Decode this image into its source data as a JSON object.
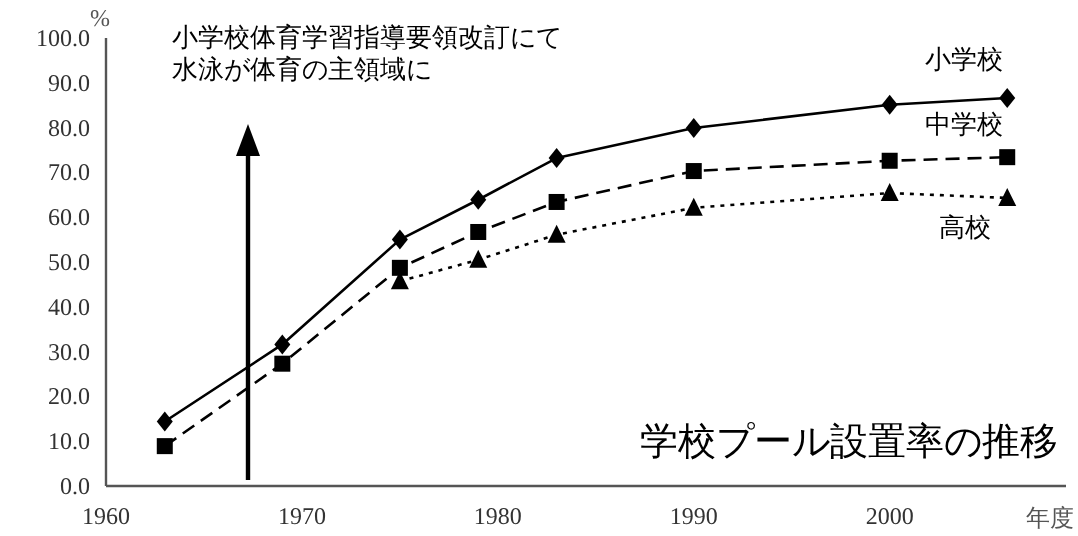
{
  "chart_data": {
    "type": "line",
    "title": "学校プール設置率の推移",
    "ylabel": "%",
    "xlabel": "年度",
    "x": [
      1963,
      1969,
      1975,
      1979,
      1983,
      1990,
      2000,
      2006
    ],
    "series": [
      {
        "name": "小学校",
        "color": "#000000",
        "marker": "diamond",
        "line_style": "solid",
        "values": [
          14.4,
          31.6,
          55.0,
          63.9,
          73.2,
          79.9,
          85.1,
          86.6
        ]
      },
      {
        "name": "中学校",
        "color": "#000000",
        "marker": "square",
        "line_style": "dashed",
        "values": [
          8.9,
          27.3,
          48.7,
          56.7,
          63.4,
          70.3,
          72.6,
          73.4
        ]
      },
      {
        "name": "高校",
        "color": "#000000",
        "marker": "triangle",
        "line_style": "dotted",
        "values": [
          null,
          null,
          45.7,
          50.5,
          56.1,
          62.1,
          65.4,
          64.3
        ]
      }
    ],
    "xlim": [
      1960,
      2009
    ],
    "xticks": [
      1960,
      1970,
      1980,
      1990,
      2000
    ],
    "ylim": [
      0,
      100
    ],
    "yticks": [
      {
        "value": 0,
        "label": "0.0"
      },
      {
        "value": 10,
        "label": "10.0"
      },
      {
        "value": 20,
        "label": "20.0"
      },
      {
        "value": 30,
        "label": "30.0"
      },
      {
        "value": 40,
        "label": "40.0"
      },
      {
        "value": 50,
        "label": "50.0"
      },
      {
        "value": 60,
        "label": "60.0"
      },
      {
        "value": 70,
        "label": "70.0"
      },
      {
        "value": 80,
        "label": "80.0"
      },
      {
        "value": 90,
        "label": "90.0"
      },
      {
        "value": 100,
        "label": "100.0"
      }
    ],
    "annotations": [
      "小学校体育学習指導要領改訂にて",
      "水泳が体育の主領域に"
    ]
  }
}
